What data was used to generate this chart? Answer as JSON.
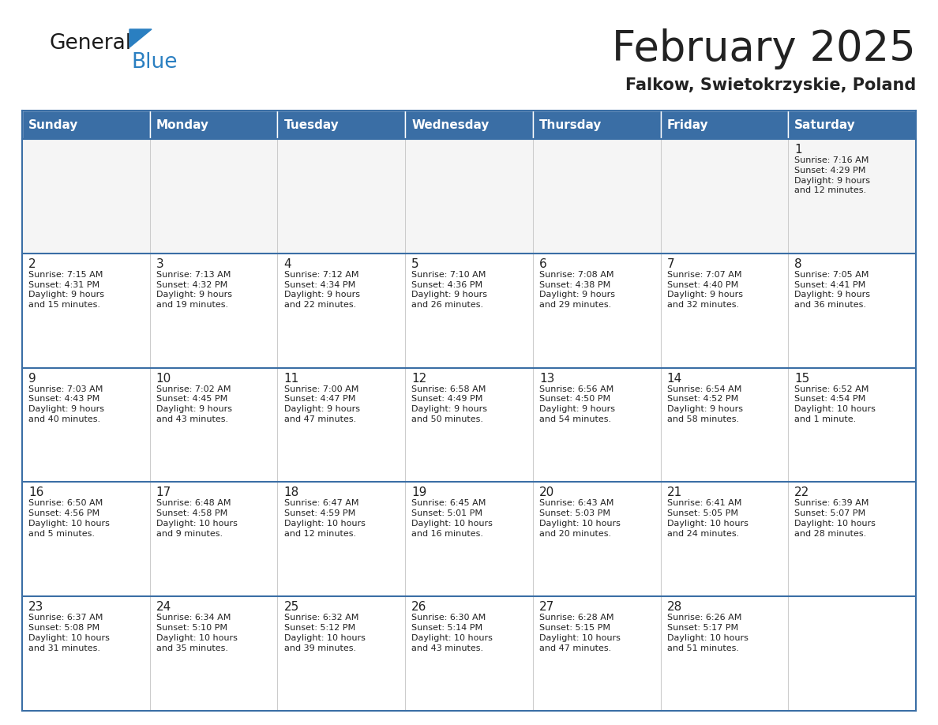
{
  "title": "February 2025",
  "subtitle": "Falkow, Swietokrzyskie, Poland",
  "header_color": "#3a6ea5",
  "header_text_color": "#ffffff",
  "cell_bg_color": "#ffffff",
  "cell_alt_bg_color": "#f5f5f5",
  "border_color": "#3a6ea5",
  "text_color": "#222222",
  "day_headers": [
    "Sunday",
    "Monday",
    "Tuesday",
    "Wednesday",
    "Thursday",
    "Friday",
    "Saturday"
  ],
  "logo_general_color": "#1a1a1a",
  "logo_blue_color": "#2a7fc1",
  "title_fontsize": 38,
  "subtitle_fontsize": 15,
  "header_fontsize": 11,
  "day_num_fontsize": 11,
  "info_fontsize": 8,
  "calendar_data": [
    [
      null,
      null,
      null,
      null,
      null,
      null,
      {
        "day": "1",
        "sunrise": "7:16 AM",
        "sunset": "4:29 PM",
        "daylight": "9 hours\nand 12 minutes."
      }
    ],
    [
      {
        "day": "2",
        "sunrise": "7:15 AM",
        "sunset": "4:31 PM",
        "daylight": "9 hours\nand 15 minutes."
      },
      {
        "day": "3",
        "sunrise": "7:13 AM",
        "sunset": "4:32 PM",
        "daylight": "9 hours\nand 19 minutes."
      },
      {
        "day": "4",
        "sunrise": "7:12 AM",
        "sunset": "4:34 PM",
        "daylight": "9 hours\nand 22 minutes."
      },
      {
        "day": "5",
        "sunrise": "7:10 AM",
        "sunset": "4:36 PM",
        "daylight": "9 hours\nand 26 minutes."
      },
      {
        "day": "6",
        "sunrise": "7:08 AM",
        "sunset": "4:38 PM",
        "daylight": "9 hours\nand 29 minutes."
      },
      {
        "day": "7",
        "sunrise": "7:07 AM",
        "sunset": "4:40 PM",
        "daylight": "9 hours\nand 32 minutes."
      },
      {
        "day": "8",
        "sunrise": "7:05 AM",
        "sunset": "4:41 PM",
        "daylight": "9 hours\nand 36 minutes."
      }
    ],
    [
      {
        "day": "9",
        "sunrise": "7:03 AM",
        "sunset": "4:43 PM",
        "daylight": "9 hours\nand 40 minutes."
      },
      {
        "day": "10",
        "sunrise": "7:02 AM",
        "sunset": "4:45 PM",
        "daylight": "9 hours\nand 43 minutes."
      },
      {
        "day": "11",
        "sunrise": "7:00 AM",
        "sunset": "4:47 PM",
        "daylight": "9 hours\nand 47 minutes."
      },
      {
        "day": "12",
        "sunrise": "6:58 AM",
        "sunset": "4:49 PM",
        "daylight": "9 hours\nand 50 minutes."
      },
      {
        "day": "13",
        "sunrise": "6:56 AM",
        "sunset": "4:50 PM",
        "daylight": "9 hours\nand 54 minutes."
      },
      {
        "day": "14",
        "sunrise": "6:54 AM",
        "sunset": "4:52 PM",
        "daylight": "9 hours\nand 58 minutes."
      },
      {
        "day": "15",
        "sunrise": "6:52 AM",
        "sunset": "4:54 PM",
        "daylight": "10 hours\nand 1 minute."
      }
    ],
    [
      {
        "day": "16",
        "sunrise": "6:50 AM",
        "sunset": "4:56 PM",
        "daylight": "10 hours\nand 5 minutes."
      },
      {
        "day": "17",
        "sunrise": "6:48 AM",
        "sunset": "4:58 PM",
        "daylight": "10 hours\nand 9 minutes."
      },
      {
        "day": "18",
        "sunrise": "6:47 AM",
        "sunset": "4:59 PM",
        "daylight": "10 hours\nand 12 minutes."
      },
      {
        "day": "19",
        "sunrise": "6:45 AM",
        "sunset": "5:01 PM",
        "daylight": "10 hours\nand 16 minutes."
      },
      {
        "day": "20",
        "sunrise": "6:43 AM",
        "sunset": "5:03 PM",
        "daylight": "10 hours\nand 20 minutes."
      },
      {
        "day": "21",
        "sunrise": "6:41 AM",
        "sunset": "5:05 PM",
        "daylight": "10 hours\nand 24 minutes."
      },
      {
        "day": "22",
        "sunrise": "6:39 AM",
        "sunset": "5:07 PM",
        "daylight": "10 hours\nand 28 minutes."
      }
    ],
    [
      {
        "day": "23",
        "sunrise": "6:37 AM",
        "sunset": "5:08 PM",
        "daylight": "10 hours\nand 31 minutes."
      },
      {
        "day": "24",
        "sunrise": "6:34 AM",
        "sunset": "5:10 PM",
        "daylight": "10 hours\nand 35 minutes."
      },
      {
        "day": "25",
        "sunrise": "6:32 AM",
        "sunset": "5:12 PM",
        "daylight": "10 hours\nand 39 minutes."
      },
      {
        "day": "26",
        "sunrise": "6:30 AM",
        "sunset": "5:14 PM",
        "daylight": "10 hours\nand 43 minutes."
      },
      {
        "day": "27",
        "sunrise": "6:28 AM",
        "sunset": "5:15 PM",
        "daylight": "10 hours\nand 47 minutes."
      },
      {
        "day": "28",
        "sunrise": "6:26 AM",
        "sunset": "5:17 PM",
        "daylight": "10 hours\nand 51 minutes."
      },
      null
    ]
  ]
}
